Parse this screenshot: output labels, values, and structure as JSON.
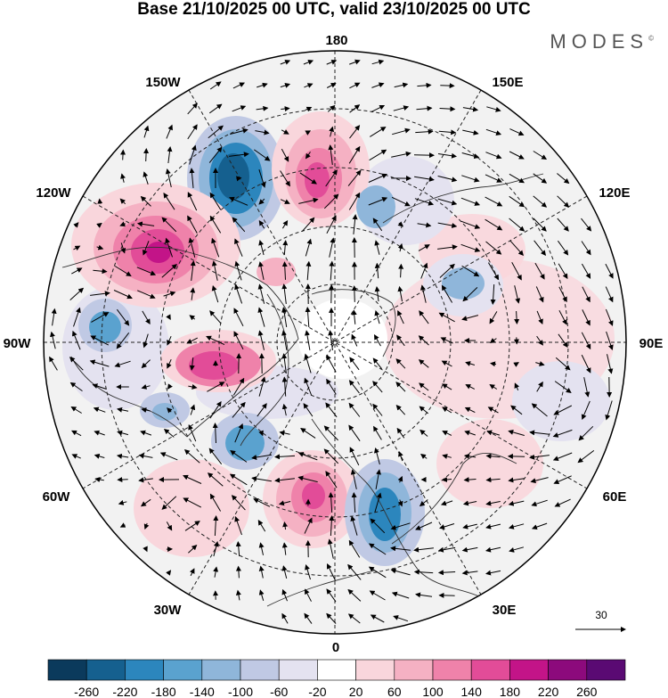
{
  "title": "Base 21/10/2025 00 UTC, valid 23/10/2025 00 UTC",
  "brand": "MODES",
  "brand_mark": "©",
  "longitude_labels": [
    "180",
    "150E",
    "120E",
    "90E",
    "60E",
    "30E",
    "0",
    "30W",
    "60W",
    "90W",
    "120W",
    "150W"
  ],
  "wind_scale_label": "30",
  "colorbar": {
    "labels": [
      "-260",
      "-220",
      "-180",
      "-140",
      "-100",
      "-60",
      "-20",
      "20",
      "60",
      "100",
      "140",
      "180",
      "220",
      "260"
    ],
    "colors": [
      "#0b3a5c",
      "#15608f",
      "#2c86bd",
      "#5aa2cf",
      "#8fb6da",
      "#c0c9e4",
      "#e4e2f0",
      "#ffffff",
      "#f9d6dc",
      "#f5b1c3",
      "#ef82aa",
      "#e24c98",
      "#c31488",
      "#8c0a7c",
      "#5a0a73"
    ]
  },
  "anomalies": [
    {
      "id": "low-150w",
      "color": "#2c86bd",
      "edge": "#c0c9e4"
    },
    {
      "id": "high-150w-180",
      "color": "#e24c98",
      "edge": "#f9d6dc"
    },
    {
      "id": "high-120w",
      "color": "#c31488",
      "edge": "#f9d6dc"
    },
    {
      "id": "low-90w",
      "color": "#5aa2cf",
      "edge": "#c0c9e4"
    },
    {
      "id": "high-90w-inner",
      "color": "#e24c98",
      "edge": "#f9d6dc"
    },
    {
      "id": "low-60w",
      "color": "#5aa2cf",
      "edge": "#c0c9e4"
    },
    {
      "id": "high-60w",
      "color": "#f5b1c3",
      "edge": "#f9d6dc"
    },
    {
      "id": "high-0",
      "color": "#e24c98",
      "edge": "#f9d6dc"
    },
    {
      "id": "low-30e",
      "color": "#2c86bd",
      "edge": "#c0c9e4"
    },
    {
      "id": "low-120e",
      "color": "#8fb6da",
      "edge": "#e4e2f0"
    },
    {
      "id": "low-150e",
      "color": "#8fb6da",
      "edge": "#e4e2f0"
    },
    {
      "id": "high-90e",
      "color": "#f9d6dc",
      "edge": "#f9d6dc"
    },
    {
      "id": "low-60e",
      "color": "#c0c9e4",
      "edge": "#e4e2f0"
    },
    {
      "id": "high-45e",
      "color": "#f9d6dc",
      "edge": "#f9d6dc"
    }
  ]
}
